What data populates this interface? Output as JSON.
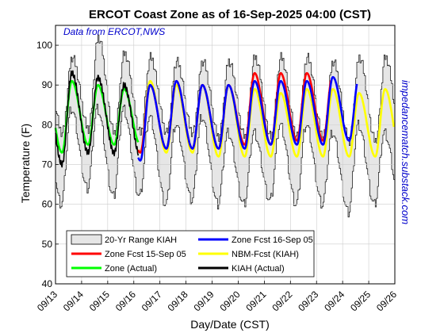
{
  "chart_data": {
    "type": "line",
    "title": "ERCOT Coast Zone as of 16-Sep-2025 04:00 (CST)",
    "xlabel": "Day/Date (CST)",
    "ylabel": "Temperature (F)",
    "annotation": "Data from ERCOT,NWS",
    "watermark": "impedancematch.substack.com",
    "xlim": [
      0,
      13
    ],
    "ylim": [
      40,
      105
    ],
    "x_ticks": [
      {
        "x": 0,
        "label": "09/13"
      },
      {
        "x": 1,
        "label": "09/14"
      },
      {
        "x": 2,
        "label": "09/15"
      },
      {
        "x": 3,
        "label": "09/16"
      },
      {
        "x": 4,
        "label": "09/17"
      },
      {
        "x": 5,
        "label": "09/18"
      },
      {
        "x": 6,
        "label": "09/19"
      },
      {
        "x": 7,
        "label": "09/20"
      },
      {
        "x": 8,
        "label": "09/21"
      },
      {
        "x": 9,
        "label": "09/22"
      },
      {
        "x": 10,
        "label": "09/23"
      },
      {
        "x": 11,
        "label": "09/24"
      },
      {
        "x": 12,
        "label": "09/25"
      },
      {
        "x": 13,
        "label": "09/26"
      }
    ],
    "y_ticks": [
      40,
      50,
      60,
      70,
      80,
      90,
      100
    ],
    "grid": true,
    "legend_position": "bottom-center",
    "legend": [
      {
        "label": "20-Yr Range KIAH",
        "kind": "patch",
        "color": "#e6e6e6"
      },
      {
        "label": "Zone Fcst 16-Sep 05",
        "kind": "line",
        "color": "#0000ff"
      },
      {
        "label": "Zone Fcst 15-Sep 05",
        "kind": "line",
        "color": "#ff0000"
      },
      {
        "label": "NBM-Fcst (KIAH)",
        "kind": "line",
        "color": "#ffff00"
      },
      {
        "label": "Zone (Actual)",
        "kind": "line",
        "color": "#00ff00"
      },
      {
        "label": "KIAH (Actual)",
        "kind": "line",
        "color": "#000000"
      }
    ],
    "range_band": {
      "name": "20-Yr Range KIAH",
      "x_days": [
        0,
        1,
        2,
        3,
        4,
        5,
        6,
        7,
        8,
        9,
        10,
        11,
        12
      ],
      "daily_high_max": [
        97,
        102,
        98,
        97,
        96,
        96,
        96,
        97,
        97,
        97,
        96,
        97,
        97
      ],
      "daily_high_min": [
        84,
        84,
        84,
        82,
        80,
        82,
        78,
        78,
        80,
        80,
        78,
        80,
        78
      ],
      "daily_low_max": [
        78,
        79,
        78,
        78,
        78,
        78,
        77,
        77,
        77,
        77,
        77,
        76,
        76
      ],
      "daily_low_min": [
        60,
        64,
        62,
        62,
        60,
        61,
        60,
        60,
        61,
        60,
        60,
        58,
        60
      ]
    },
    "series": [
      {
        "name": "KIAH (Actual)",
        "color": "#000000",
        "x_start": 0.0,
        "x_end": 3.17,
        "daily_min": [
          70,
          73,
          73,
          72
        ],
        "daily_max": [
          93,
          92,
          90
        ]
      },
      {
        "name": "Zone (Actual)",
        "color": "#00ff00",
        "x_start": 0.0,
        "x_end": 3.17,
        "daily_min": [
          73,
          75,
          75,
          75
        ],
        "daily_max": [
          91,
          90,
          89
        ]
      },
      {
        "name": "Zone Fcst 16-Sep 05",
        "color": "#0000ff",
        "x_start": 3.17,
        "x_end": 11.55,
        "daily_min": [
          71,
          74,
          74,
          74,
          74,
          75,
          75,
          75,
          76
        ],
        "daily_max": [
          90,
          91,
          90,
          90,
          91,
          91,
          91,
          92
        ]
      },
      {
        "name": "Zone Fcst 15-Sep 05",
        "color": "#ff0000",
        "x_start": 3.17,
        "x_end": 10.55,
        "daily_min": [
          73,
          74,
          74,
          74,
          75,
          75,
          76,
          76
        ],
        "daily_max": [
          90,
          91,
          90,
          90,
          93,
          93,
          93,
          93
        ]
      },
      {
        "name": "NBM-Fcst (KIAH)",
        "color": "#ffff00",
        "x_start": 3.17,
        "x_end": 12.98,
        "daily_min": [
          73,
          73,
          73,
          72,
          72,
          72,
          72,
          72,
          72,
          72
        ],
        "daily_max": [
          91,
          90,
          90,
          90,
          89,
          88,
          89,
          89,
          88,
          89
        ]
      }
    ]
  }
}
